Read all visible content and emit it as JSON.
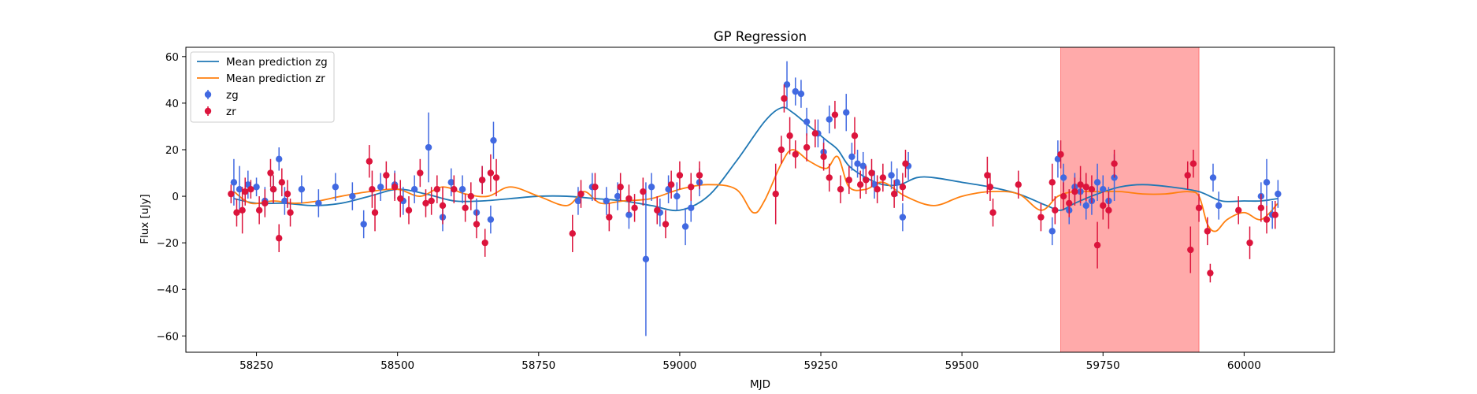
{
  "chart_data": {
    "type": "scatter",
    "title": "GP Regression",
    "xlabel": "MJD",
    "ylabel": "Flux [uJy]",
    "xlim": [
      58125,
      60160
    ],
    "ylim": [
      -67,
      64
    ],
    "xticks": [
      58250,
      58500,
      58750,
      59000,
      59250,
      59500,
      59750,
      60000
    ],
    "yticks": [
      -60,
      -40,
      -20,
      0,
      20,
      40,
      60
    ],
    "grid": false,
    "legend_position": "top-left",
    "shaded_region": {
      "x": [
        59675,
        59920
      ],
      "color": "#ff5555",
      "alpha": 0.5
    },
    "lines": [
      {
        "name": "Mean prediction zg",
        "color": "#1f77b4",
        "x": [
          58210,
          58250,
          58300,
          58350,
          58400,
          58450,
          58500,
          58550,
          58600,
          58650,
          58700,
          58750,
          58800,
          58850,
          58900,
          58950,
          59000,
          59050,
          59100,
          59150,
          59180,
          59200,
          59230,
          59260,
          59280,
          59300,
          59330,
          59360,
          59390,
          59420,
          59450,
          59500,
          59550,
          59600,
          59650,
          59675,
          59700,
          59740,
          59780,
          59820,
          59870,
          59920,
          59960,
          60000,
          60030,
          60060
        ],
        "y": [
          -1,
          -3,
          -3,
          -4,
          -3,
          0,
          3,
          1,
          -2,
          -2,
          -1,
          0,
          0,
          -1,
          -2,
          -4,
          -6,
          0,
          15,
          32,
          38,
          36,
          30,
          24,
          20,
          13,
          8,
          5,
          5,
          8,
          8,
          6,
          4,
          1,
          -4,
          -6,
          -3,
          1,
          4,
          5,
          4,
          2,
          -2,
          -2,
          -2,
          -1
        ]
      },
      {
        "name": "Mean prediction zr",
        "color": "#ff7f0e",
        "x": [
          58210,
          58240,
          58280,
          58320,
          58360,
          58400,
          58450,
          58500,
          58540,
          58580,
          58620,
          58660,
          58700,
          58750,
          58800,
          58830,
          58860,
          58900,
          58950,
          59000,
          59050,
          59100,
          59130,
          59150,
          59180,
          59200,
          59230,
          59260,
          59280,
          59300,
          59330,
          59360,
          59400,
          59450,
          59500,
          59550,
          59600,
          59640,
          59670,
          59700,
          59740,
          59780,
          59820,
          59860,
          59900,
          59920,
          59935,
          59950,
          59970,
          60000,
          60030,
          60060
        ],
        "y": [
          2,
          -3,
          -2,
          -3,
          -2,
          0,
          2,
          3,
          0,
          4,
          1,
          0,
          4,
          0,
          -4,
          2,
          -3,
          -2,
          -1,
          3,
          5,
          3,
          -7,
          -2,
          14,
          20,
          15,
          12,
          17,
          4,
          3,
          6,
          0,
          -4,
          0,
          2,
          1,
          -6,
          0,
          2,
          2,
          2,
          1,
          1,
          2,
          0,
          -12,
          -15,
          -10,
          -7,
          -10,
          -3
        ]
      }
    ],
    "series": [
      {
        "name": "zg",
        "color": "#4169e1",
        "x": [
          58210,
          58220,
          58235,
          58250,
          58265,
          58280,
          58290,
          58300,
          58330,
          58360,
          58390,
          58420,
          58440,
          58470,
          58495,
          58510,
          58530,
          58555,
          58580,
          58595,
          58615,
          58640,
          58650,
          58665,
          58670,
          58820,
          58845,
          58870,
          58890,
          58910,
          58940,
          58950,
          58965,
          58980,
          58995,
          59010,
          59020,
          59035,
          59190,
          59205,
          59215,
          59225,
          59245,
          59255,
          59265,
          59295,
          59305,
          59315,
          59325,
          59345,
          59375,
          59385,
          59395,
          59405,
          59660,
          59670,
          59680,
          59690,
          59700,
          59710,
          59720,
          59730,
          59740,
          59750,
          59760,
          59770,
          59945,
          59955,
          60030,
          60040,
          60050,
          60060
        ],
        "y": [
          6,
          3,
          5,
          4,
          -2,
          3,
          16,
          -2,
          3,
          -3,
          4,
          0,
          -12,
          4,
          5,
          -2,
          3,
          21,
          -9,
          6,
          3,
          -7,
          7,
          -10,
          24,
          -2,
          4,
          -2,
          0,
          -8,
          -27,
          4,
          -7,
          3,
          0,
          -13,
          -5,
          6,
          48,
          45,
          44,
          32,
          27,
          19,
          33,
          36,
          17,
          14,
          13,
          5,
          9,
          6,
          -9,
          13,
          -15,
          16,
          8,
          -6,
          4,
          2,
          -4,
          -2,
          6,
          3,
          -2,
          8,
          8,
          -4,
          0,
          6,
          -8,
          1
        ],
        "err": [
          10,
          10,
          6,
          4,
          6,
          6,
          5,
          6,
          6,
          6,
          6,
          6,
          6,
          6,
          6,
          6,
          6,
          15,
          6,
          6,
          6,
          6,
          6,
          6,
          8,
          6,
          6,
          6,
          6,
          6,
          33,
          6,
          6,
          6,
          6,
          8,
          6,
          6,
          10,
          6,
          6,
          6,
          6,
          6,
          6,
          8,
          6,
          6,
          6,
          6,
          6,
          6,
          6,
          6,
          6,
          8,
          6,
          6,
          6,
          6,
          6,
          6,
          8,
          6,
          6,
          10,
          6,
          6,
          6,
          10,
          6,
          6
        ]
      },
      {
        "name": "zr",
        "color": "#dc143c",
        "x": [
          58205,
          58215,
          58225,
          58230,
          58240,
          58255,
          58265,
          58275,
          58280,
          58290,
          58295,
          58305,
          58310,
          58450,
          58455,
          58460,
          58480,
          58495,
          58505,
          58520,
          58540,
          58550,
          58560,
          58570,
          58580,
          58600,
          58620,
          58630,
          58640,
          58650,
          58655,
          58665,
          58675,
          58810,
          58825,
          58850,
          58875,
          58895,
          58910,
          58920,
          58935,
          58960,
          58975,
          58985,
          59000,
          59020,
          59035,
          59170,
          59180,
          59185,
          59195,
          59205,
          59225,
          59240,
          59255,
          59265,
          59275,
          59285,
          59300,
          59310,
          59320,
          59330,
          59340,
          59350,
          59360,
          59380,
          59395,
          59400,
          59545,
          59550,
          59555,
          59600,
          59640,
          59660,
          59665,
          59675,
          59680,
          59690,
          59700,
          59710,
          59720,
          59730,
          59740,
          59750,
          59760,
          59770,
          59900,
          59905,
          59910,
          59920,
          59935,
          59940,
          59990,
          60010,
          60030,
          60040,
          60055
        ],
        "y": [
          1,
          -7,
          -6,
          2,
          3,
          -6,
          -3,
          10,
          3,
          -18,
          6,
          1,
          -7,
          15,
          3,
          -7,
          9,
          4,
          -1,
          -6,
          10,
          -3,
          -2,
          3,
          -4,
          3,
          -5,
          0,
          -12,
          7,
          -20,
          10,
          8,
          -16,
          1,
          4,
          -9,
          4,
          -1,
          -5,
          2,
          -6,
          -12,
          5,
          9,
          4,
          9,
          1,
          20,
          42,
          26,
          18,
          21,
          27,
          17,
          8,
          35,
          3,
          7,
          26,
          5,
          7,
          10,
          3,
          8,
          1,
          4,
          14,
          9,
          4,
          -7,
          5,
          -9,
          6,
          -6,
          18,
          0,
          -3,
          2,
          5,
          4,
          3,
          -21,
          -4,
          -6,
          14,
          9,
          -23,
          14,
          -5,
          -15,
          -33,
          -6,
          -20,
          -5,
          -10,
          -8
        ],
        "err": [
          4,
          6,
          10,
          6,
          4,
          6,
          6,
          6,
          6,
          6,
          6,
          6,
          6,
          7,
          8,
          8,
          6,
          6,
          8,
          6,
          6,
          6,
          6,
          6,
          8,
          6,
          6,
          6,
          6,
          6,
          6,
          8,
          8,
          8,
          6,
          6,
          6,
          6,
          6,
          6,
          6,
          6,
          6,
          6,
          6,
          6,
          6,
          13,
          6,
          6,
          8,
          6,
          6,
          6,
          6,
          6,
          6,
          6,
          6,
          8,
          6,
          6,
          6,
          6,
          6,
          6,
          6,
          6,
          8,
          6,
          6,
          6,
          6,
          8,
          6,
          6,
          6,
          6,
          6,
          8,
          6,
          6,
          10,
          6,
          8,
          6,
          6,
          10,
          6,
          6,
          6,
          4,
          6,
          7,
          6,
          6,
          6
        ]
      }
    ]
  }
}
